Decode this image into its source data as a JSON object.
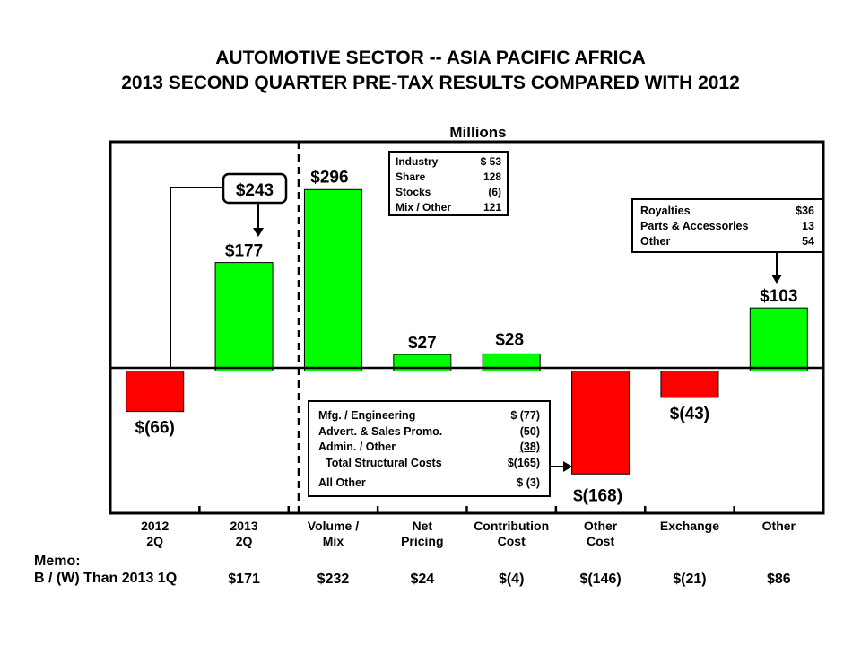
{
  "titles": {
    "line1": "AUTOMOTIVE SECTOR -- ASIA PACIFIC AFRICA",
    "line2": "2013 SECOND QUARTER PRE-TAX RESULTS COMPARED WITH 2012"
  },
  "units_label": "Millions",
  "callout_total": "$243",
  "colors": {
    "positive": "#00ff00",
    "negative": "#ff0000",
    "outline": "#000000"
  },
  "chart_data": {
    "type": "bar",
    "title": "AUTOMOTIVE SECTOR -- ASIA PACIFIC AFRICA 2013 SECOND QUARTER PRE-TAX RESULTS COMPARED WITH 2012",
    "ylabel": "Millions",
    "categories": [
      [
        "2012",
        "2Q"
      ],
      [
        "2013",
        "2Q"
      ],
      [
        "Volume /",
        "Mix"
      ],
      [
        "Net",
        "Pricing"
      ],
      [
        "Contribution",
        "Cost"
      ],
      [
        "Other",
        "Cost"
      ],
      [
        "Exchange",
        ""
      ],
      [
        "Other",
        ""
      ]
    ],
    "values": [
      -66,
      177,
      296,
      27,
      28,
      -168,
      -43,
      103
    ],
    "value_labels": [
      "$(66)",
      "$177",
      "$296",
      "$27",
      "$28",
      "$(168)",
      "$(43)",
      "$103"
    ],
    "ylim": [
      -232,
      374
    ],
    "grid": false
  },
  "volume_box": {
    "rows": [
      {
        "label": "Industry",
        "value": "$  53"
      },
      {
        "label": "Share",
        "value": "128"
      },
      {
        "label": "Stocks",
        "value": "(6)"
      },
      {
        "label": "Mix / Other",
        "value": "121"
      }
    ]
  },
  "other_box": {
    "rows": [
      {
        "label": "Royalties",
        "value": "$36"
      },
      {
        "label": "Parts & Accessories",
        "value": "13"
      },
      {
        "label": "Other",
        "value": "54"
      }
    ]
  },
  "cost_box": {
    "rows": [
      {
        "label": "Mfg. / Engineering",
        "value": "$  (77)"
      },
      {
        "label": "Advert. & Sales Promo.",
        "value": "(50)"
      },
      {
        "label": "Admin. / Other",
        "value": "(38)"
      },
      {
        "label": "Total Structural Costs",
        "value": "$(165)"
      },
      {
        "label": "All Other",
        "value": "$    (3)"
      }
    ]
  },
  "memo": {
    "title": "Memo:",
    "row_label": "B / (W) Than 2013 1Q",
    "values": [
      "$171",
      "$232",
      "$24",
      "$(4)",
      "$(146)",
      "$(21)",
      "$86"
    ]
  }
}
